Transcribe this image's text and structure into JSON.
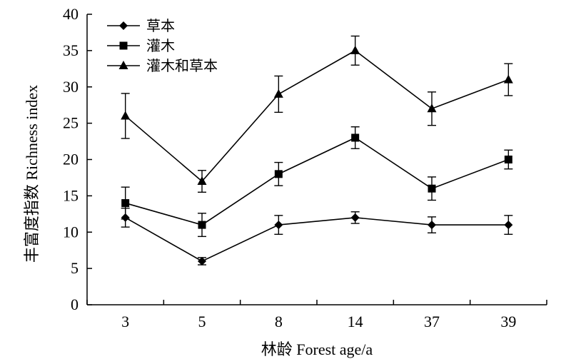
{
  "chart_data": {
    "type": "line",
    "categories": [
      "3",
      "5",
      "8",
      "14",
      "37",
      "39"
    ],
    "xlabel": "林龄 Forest age/a",
    "ylabel": "丰富度指数 Richness index",
    "ylim": [
      0,
      40
    ],
    "yticks": [
      0,
      5,
      10,
      15,
      20,
      25,
      30,
      35,
      40
    ],
    "grid": false,
    "legend_position": "top-left",
    "series": [
      {
        "name": "草本",
        "marker": "diamond",
        "values": [
          12,
          6,
          11,
          12,
          11,
          11
        ],
        "errors": [
          1.3,
          0.5,
          1.3,
          0.8,
          1.1,
          1.3
        ]
      },
      {
        "name": "灌木",
        "marker": "square",
        "values": [
          14,
          11,
          18,
          23,
          16,
          20
        ],
        "errors": [
          2.2,
          1.6,
          1.6,
          1.5,
          1.6,
          1.3
        ]
      },
      {
        "name": "灌木和草本",
        "marker": "triangle",
        "values": [
          26,
          17,
          29,
          35,
          27,
          31
        ],
        "errors": [
          3.1,
          1.5,
          2.5,
          2.0,
          2.3,
          2.2
        ]
      }
    ]
  }
}
